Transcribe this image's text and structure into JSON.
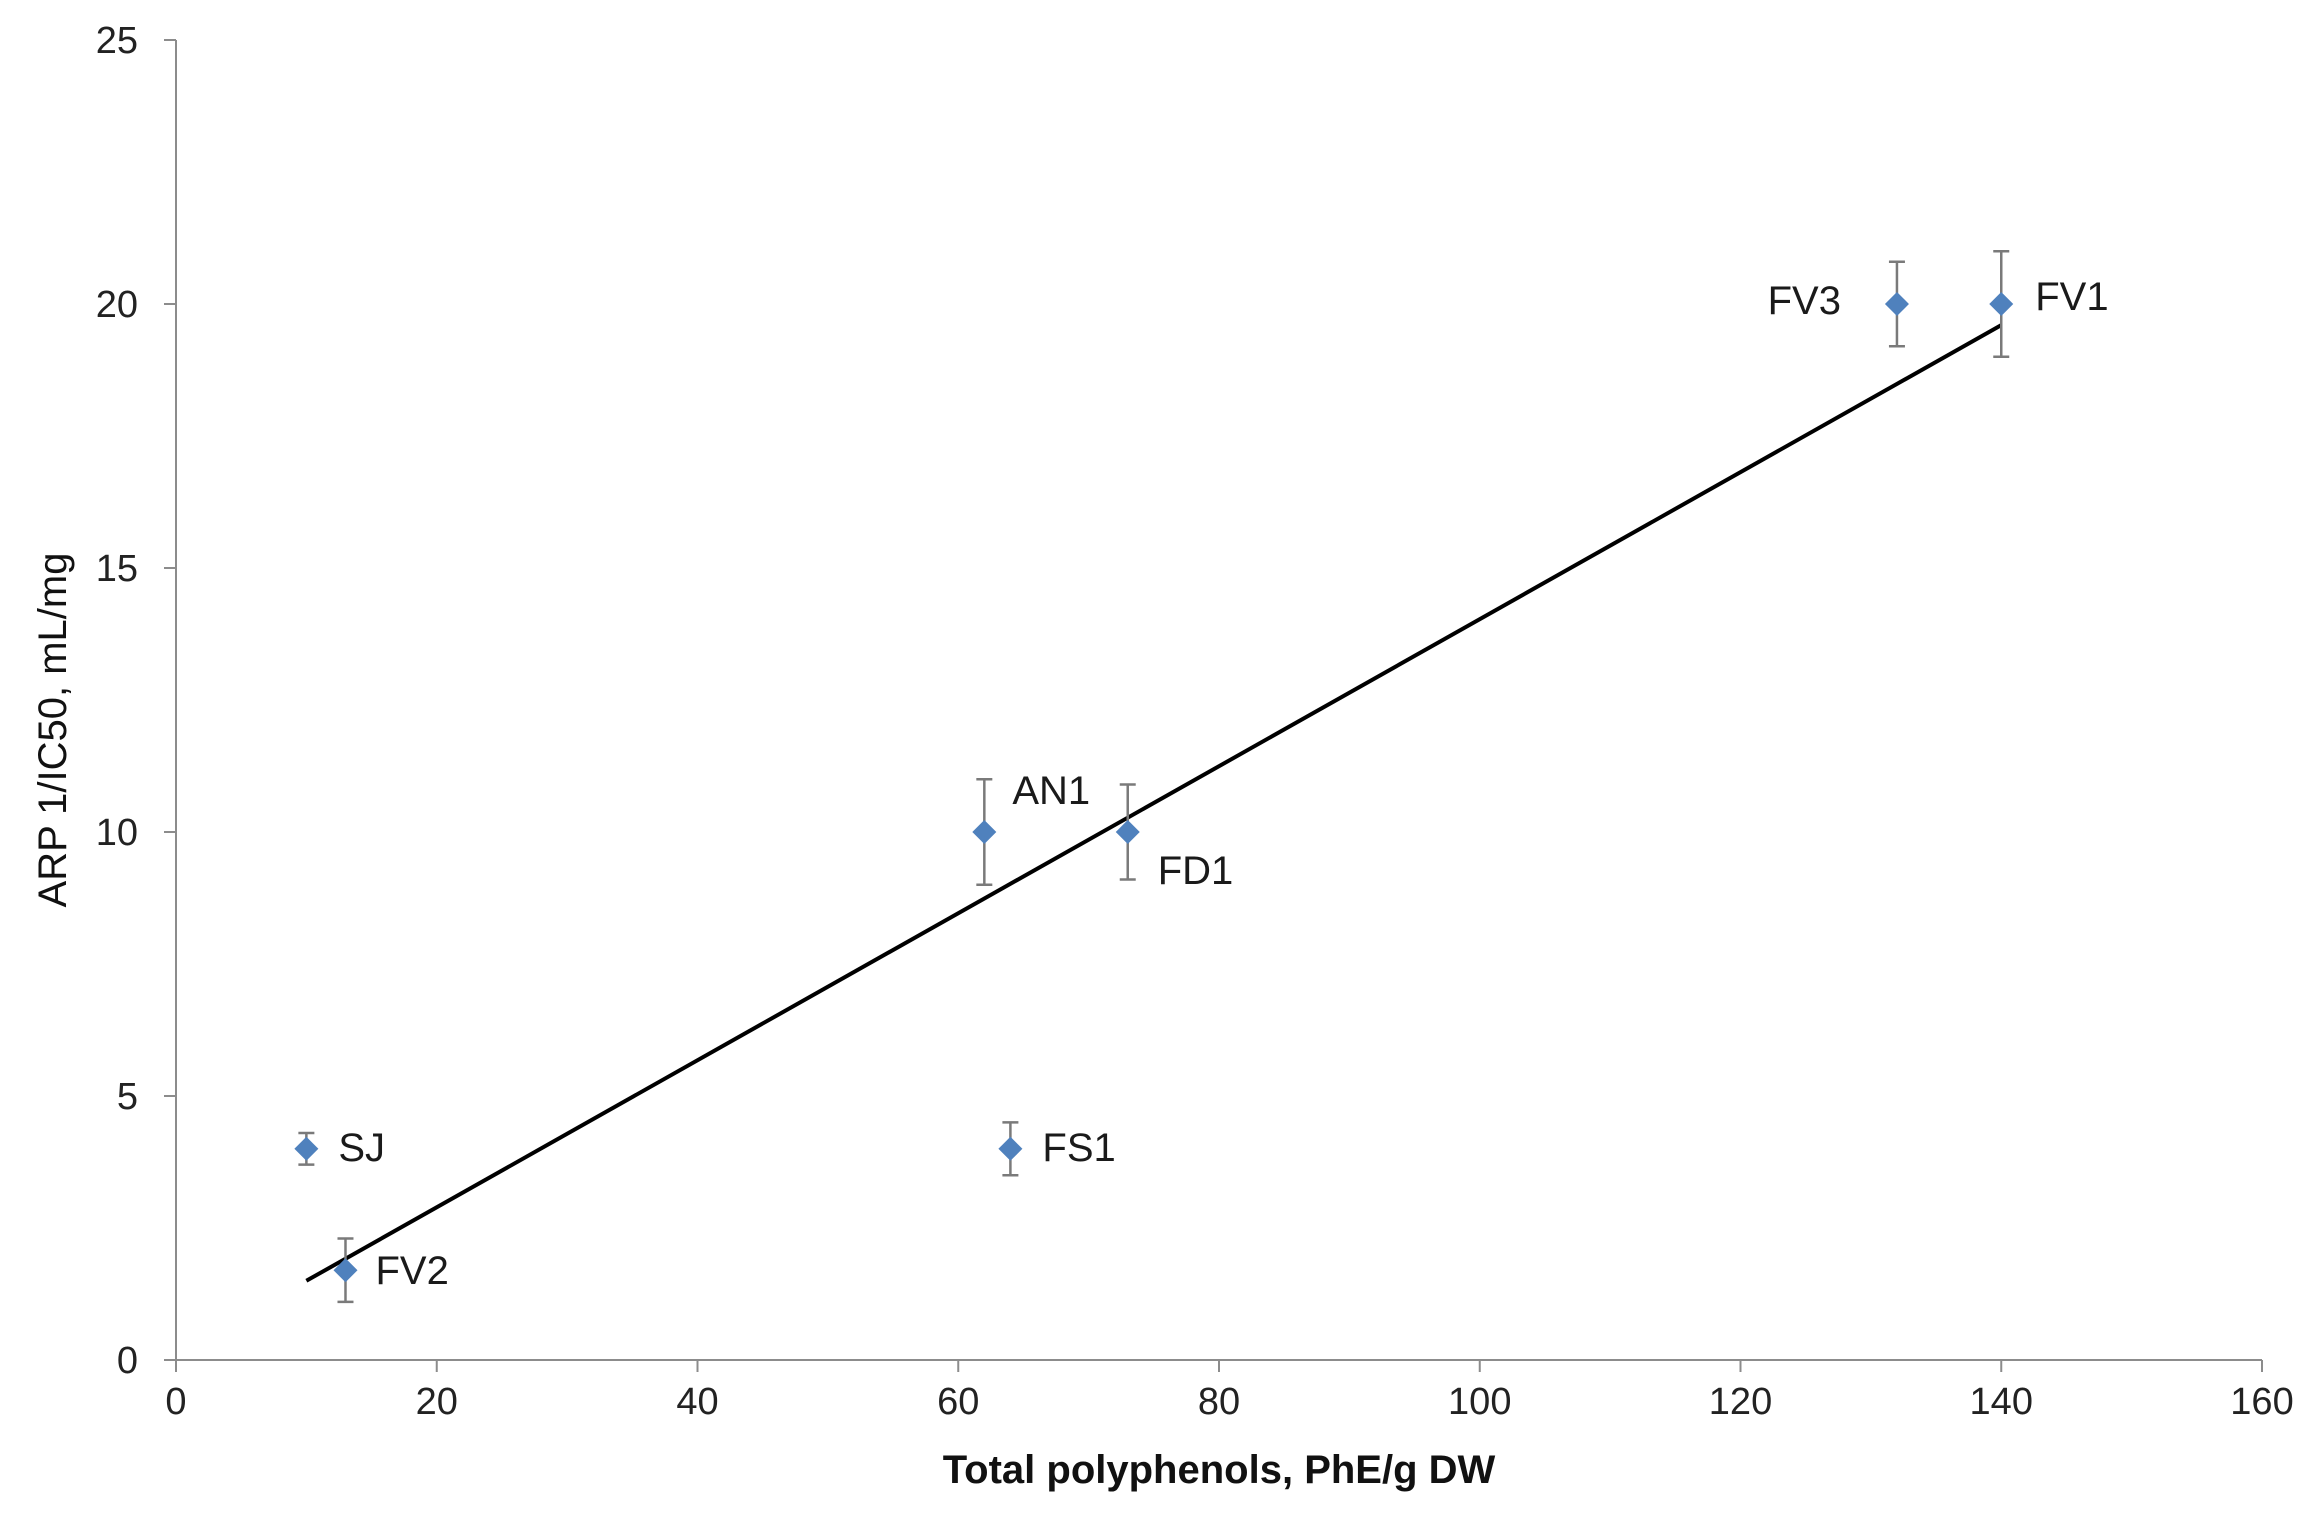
{
  "chart_data": {
    "type": "scatter",
    "xlabel": "Total polyphenols, PhE/g DW",
    "ylabel": "ARP 1/IC50, mL/mg",
    "xlim": [
      0,
      160
    ],
    "ylim": [
      0,
      25
    ],
    "x_ticks": [
      0,
      20,
      40,
      60,
      80,
      100,
      120,
      140,
      160
    ],
    "y_ticks": [
      0,
      5,
      10,
      15,
      20,
      25
    ],
    "grid": false,
    "marker": "diamond",
    "marker_color": "#4f81bd",
    "points": [
      {
        "label": "SJ",
        "x": 10,
        "y": 4,
        "err": 0.3,
        "label_side": "right"
      },
      {
        "label": "FV2",
        "x": 13,
        "y": 1.7,
        "err": 0.6,
        "label_side": "right-below"
      },
      {
        "label": "AN1",
        "x": 62,
        "y": 10,
        "err": 1.0,
        "label_side": "right-above"
      },
      {
        "label": "FS1",
        "x": 64,
        "y": 4,
        "err": 0.5,
        "label_side": "right"
      },
      {
        "label": "FD1",
        "x": 73,
        "y": 10,
        "err": 0.9,
        "label_side": "right-below"
      },
      {
        "label": "FV3",
        "x": 132,
        "y": 20,
        "err": 0.8,
        "label_side": "left"
      },
      {
        "label": "FV1",
        "x": 140,
        "y": 20,
        "err": 1.0,
        "label_side": "right"
      }
    ],
    "trendline": {
      "x": [
        10,
        140
      ],
      "y": [
        1.5,
        19.6
      ],
      "color": "#000000"
    }
  }
}
